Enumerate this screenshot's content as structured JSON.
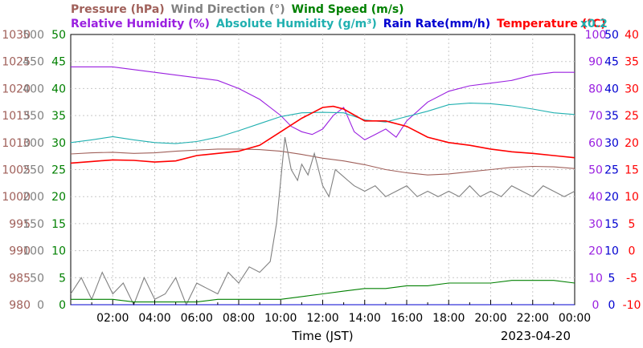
{
  "chart_data": {
    "type": "line",
    "date": "2023-04-20",
    "xlabel": "Time (JST)",
    "x_ticks": [
      "02:00",
      "04:00",
      "06:00",
      "08:00",
      "10:00",
      "12:00",
      "14:00",
      "16:00",
      "18:00",
      "20:00",
      "22:00",
      "00:00"
    ],
    "x_range_hours": [
      0,
      24
    ],
    "legend": {
      "row1": [
        {
          "key": "pressure",
          "label": "Pressure (hPa)",
          "color": "#a0605a"
        },
        {
          "key": "wind_dir",
          "label": "Wind Direction (°)",
          "color": "#808080"
        },
        {
          "key": "wind_speed",
          "label": "Wind Speed (m/s)",
          "color": "#008000"
        }
      ],
      "row2": [
        {
          "key": "rh",
          "label": "Relative Humidity (%)",
          "color": "#9a20e0"
        },
        {
          "key": "ah",
          "label": "Absolute Humidity (g/m³)",
          "color": "#20b0b0"
        },
        {
          "key": "rain",
          "label": "Rain Rate(mm/h)",
          "color": "#0000d0"
        },
        {
          "key": "temp",
          "label": "Temperature (°C)",
          "color": "#ff0000"
        }
      ],
      "ah_scale": "x0.2"
    },
    "axes": {
      "pressure": {
        "color": "#a0605a",
        "ticks": [
          "1030",
          "1025",
          "1020",
          "1015",
          "1010",
          "1005",
          "1000",
          "995",
          "990",
          "985",
          "980"
        ],
        "range": [
          980,
          1030
        ]
      },
      "wind_dir": {
        "color": "#808080",
        "ticks": [
          "500",
          "450",
          "400",
          "350",
          "300",
          "250",
          "200",
          "150",
          "100",
          "50",
          "0"
        ],
        "range": [
          0,
          500
        ]
      },
      "wind_speed": {
        "color": "#008000",
        "ticks": [
          "50",
          "45",
          "40",
          "35",
          "30",
          "25",
          "20",
          "15",
          "10",
          "5",
          "0"
        ],
        "range": [
          0,
          50
        ]
      },
      "rh": {
        "color": "#9a20e0",
        "ticks": [
          "100",
          "90",
          "80",
          "70",
          "60",
          "50",
          "40",
          "30",
          "20",
          "10",
          "0"
        ],
        "range": [
          0,
          100
        ]
      },
      "rain": {
        "color": "#0000d0",
        "ticks": [
          "50",
          "45",
          "40",
          "35",
          "30",
          "25",
          "20",
          "15",
          "10",
          "5",
          "0"
        ],
        "range": [
          0,
          50
        ]
      },
      "temp": {
        "color": "#ff0000",
        "ticks": [
          "40",
          "35",
          "30",
          "25",
          "20",
          "15",
          "10",
          "5",
          "0",
          "-5",
          "-10"
        ],
        "range": [
          -10,
          40
        ]
      }
    },
    "series": [
      {
        "name": "Pressure (hPa)",
        "key": "pressure",
        "color": "#a0605a",
        "x": [
          0,
          1,
          2,
          3,
          4,
          5,
          6,
          7,
          8,
          9,
          10,
          11,
          12,
          13,
          14,
          15,
          16,
          17,
          18,
          19,
          20,
          21,
          22,
          23,
          24
        ],
        "y": [
          1007.9,
          1008.1,
          1008.2,
          1008.0,
          1008.1,
          1008.4,
          1008.6,
          1008.8,
          1008.8,
          1008.7,
          1008.4,
          1007.8,
          1007.1,
          1006.6,
          1005.9,
          1005.0,
          1004.4,
          1004.0,
          1004.2,
          1004.6,
          1005.0,
          1005.4,
          1005.6,
          1005.5,
          1005.2
        ]
      },
      {
        "name": "Wind Direction (°)",
        "key": "wind_dir",
        "color": "#808080",
        "x": [
          0,
          0.5,
          1,
          1.5,
          2,
          2.5,
          3,
          3.5,
          4,
          4.5,
          5,
          5.5,
          6,
          6.5,
          7,
          7.5,
          8,
          8.5,
          9,
          9.5,
          9.8,
          10.2,
          10.5,
          10.8,
          11.0,
          11.3,
          11.6,
          12.0,
          12.3,
          12.6,
          12.9,
          13.2,
          13.5,
          14,
          14.5,
          15,
          15.5,
          16,
          16.5,
          17,
          17.5,
          18,
          18.5,
          19,
          19.5,
          20,
          20.5,
          21,
          21.5,
          22,
          22.5,
          23,
          23.5,
          24
        ],
        "y": [
          20,
          50,
          10,
          60,
          20,
          40,
          0,
          50,
          10,
          20,
          50,
          0,
          40,
          30,
          20,
          60,
          40,
          70,
          60,
          80,
          150,
          310,
          250,
          230,
          260,
          240,
          280,
          220,
          200,
          250,
          240,
          230,
          220,
          210,
          220,
          200,
          210,
          220,
          200,
          210,
          200,
          210,
          200,
          220,
          200,
          210,
          200,
          220,
          210,
          200,
          220,
          210,
          200,
          210
        ]
      },
      {
        "name": "Wind Speed (m/s)",
        "key": "wind_speed",
        "color": "#008000",
        "x": [
          0,
          1,
          2,
          3,
          4,
          5,
          6,
          7,
          8,
          9,
          10,
          11,
          12,
          13,
          14,
          15,
          16,
          17,
          18,
          19,
          20,
          21,
          22,
          23,
          24
        ],
        "y": [
          1,
          1,
          1,
          0.5,
          0.5,
          0.5,
          0.5,
          1,
          1,
          1,
          1,
          1.5,
          2,
          2.5,
          3,
          3,
          3.5,
          3.5,
          4,
          4,
          4,
          4.5,
          4.5,
          4.5,
          4
        ]
      },
      {
        "name": "Relative Humidity (%)",
        "key": "rh",
        "color": "#9a20e0",
        "x": [
          0,
          1,
          2,
          3,
          4,
          5,
          6,
          7,
          8,
          9,
          10,
          10.5,
          11,
          11.5,
          12,
          12.5,
          13,
          13.5,
          14,
          14.5,
          15,
          15.5,
          16,
          17,
          18,
          19,
          20,
          21,
          22,
          23,
          24
        ],
        "y": [
          88,
          88,
          88,
          87,
          86,
          85,
          84,
          83,
          80,
          76,
          70,
          66,
          64,
          63,
          65,
          70,
          73,
          64,
          61,
          63,
          65,
          62,
          68,
          75,
          79,
          81,
          82,
          83,
          85,
          86,
          86
        ]
      },
      {
        "name": "Absolute Humidity (g/m³)",
        "key": "ah",
        "color": "#20b0b0",
        "x": [
          0,
          1,
          2,
          3,
          4,
          5,
          6,
          7,
          8,
          9,
          10,
          11,
          12,
          13,
          14,
          15,
          16,
          17,
          18,
          19,
          20,
          21,
          22,
          23,
          24
        ],
        "y": [
          300,
          305,
          311,
          305,
          300,
          298,
          302,
          310,
          322,
          335,
          348,
          355,
          356,
          355,
          342,
          338,
          348,
          358,
          370,
          373,
          372,
          368,
          362,
          355,
          352
        ]
      },
      {
        "name": "Rain Rate(mm/h)",
        "key": "rain",
        "color": "#0000d0",
        "x": [
          0,
          24
        ],
        "y": [
          0,
          0
        ]
      },
      {
        "name": "Temperature (°C)",
        "key": "temp",
        "color": "#ff0000",
        "x": [
          0,
          1,
          2,
          3,
          4,
          5,
          6,
          7,
          8,
          9,
          10,
          11,
          12,
          12.5,
          13,
          14,
          15,
          16,
          17,
          18,
          19,
          20,
          21,
          22,
          23,
          24
        ],
        "y": [
          16.2,
          16.5,
          16.8,
          16.7,
          16.4,
          16.6,
          17.6,
          18.0,
          18.4,
          19.5,
          22.0,
          24.5,
          26.5,
          26.7,
          26.2,
          24.0,
          24.0,
          23.0,
          21.0,
          20.0,
          19.5,
          18.8,
          18.3,
          18.0,
          17.6,
          17.2
        ]
      }
    ]
  }
}
